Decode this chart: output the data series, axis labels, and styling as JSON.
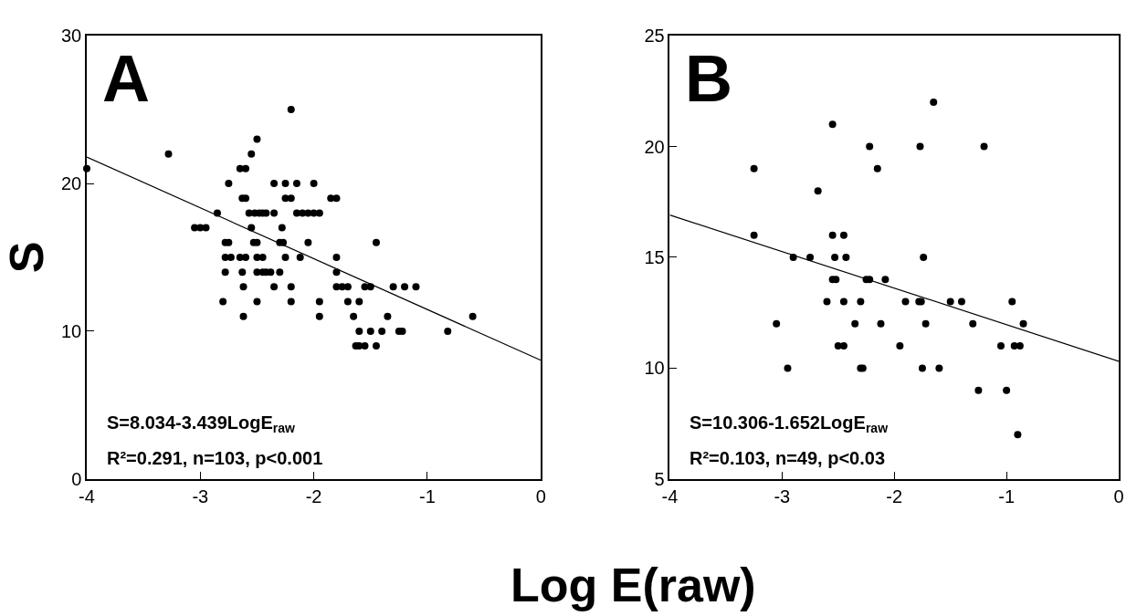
{
  "chart_data": [
    {
      "type": "scatter",
      "ylabel": "S",
      "xlabel": "Log E(raw)",
      "xlim": [
        -4,
        0
      ],
      "xticks": [
        -4,
        -3,
        -2,
        -1,
        0
      ],
      "ylim": [
        0,
        30
      ],
      "yticks": [
        0,
        10,
        20,
        30
      ],
      "annotations": [
        "A",
        "S=8.034-3.439LogE$_{raw}$",
        "R²=0.291, n=103, p<0.001"
      ],
      "series": [
        {
          "marker": "circle",
          "color": "#000000",
          "x": [
            -4.0,
            -3.28,
            -3.05,
            -3.0,
            -2.95,
            -2.85,
            -2.78,
            -2.75,
            -2.78,
            -2.73,
            -2.78,
            -2.8,
            -2.75,
            -2.65,
            -2.6,
            -2.63,
            -2.6,
            -2.65,
            -2.6,
            -2.63,
            -2.62,
            -2.62,
            -2.55,
            -2.5,
            -2.57,
            -2.52,
            -2.48,
            -2.45,
            -2.42,
            -2.53,
            -2.5,
            -2.5,
            -2.45,
            -2.55,
            -2.5,
            -2.45,
            -2.42,
            -2.38,
            -2.5,
            -2.35,
            -2.35,
            -2.35,
            -2.3,
            -2.27,
            -2.28,
            -2.3,
            -2.25,
            -2.2,
            -2.25,
            -2.2,
            -2.2,
            -2.25,
            -2.15,
            -2.2,
            -2.15,
            -2.1,
            -2.05,
            -2.12,
            -2.05,
            -2.0,
            -2.0,
            -1.95,
            -1.95,
            -1.95,
            -1.85,
            -1.8,
            -1.8,
            -1.8,
            -1.8,
            -1.75,
            -1.7,
            -1.7,
            -1.65,
            -1.6,
            -1.63,
            -1.6,
            -1.6,
            -1.55,
            -1.55,
            -1.5,
            -1.5,
            -1.45,
            -1.45,
            -1.4,
            -1.35,
            -1.3,
            -1.25,
            -1.22,
            -1.2,
            -1.1,
            -0.82,
            -0.6
          ],
          "values": [
            21,
            22,
            17,
            17,
            17,
            18,
            16,
            16,
            15,
            15,
            14,
            12,
            20,
            21,
            21,
            19,
            19,
            15,
            15,
            14,
            13,
            11,
            22,
            23,
            18,
            18,
            18,
            18,
            18,
            16,
            16,
            15,
            15,
            17,
            14,
            14,
            14,
            14,
            12,
            20,
            18,
            13,
            16,
            16,
            17,
            14,
            15,
            25,
            19,
            19,
            13,
            20,
            20,
            12,
            18,
            18,
            18,
            15,
            16,
            20,
            18,
            18,
            12,
            11,
            19,
            19,
            15,
            14,
            13,
            13,
            13,
            12,
            11,
            12,
            9,
            9,
            10,
            9,
            13,
            13,
            10,
            16,
            9,
            10,
            11,
            13,
            10,
            10,
            13,
            13,
            10,
            11
          ]
        },
        {
          "type": "line",
          "marker": "none",
          "line_style": "solid",
          "color": "#000000",
          "x": [
            -4,
            0
          ],
          "values": [
            21.79,
            8.03
          ]
        }
      ]
    },
    {
      "type": "scatter",
      "xlim": [
        -4,
        0
      ],
      "xticks": [
        -4,
        -3,
        -2,
        -1,
        0
      ],
      "ylim": [
        5,
        25
      ],
      "yticks": [
        5,
        10,
        15,
        20,
        25
      ],
      "annotations": [
        "B",
        "S=10.306-1.652LogE$_{raw}$",
        "R²=0.103, n=49, p<0.03"
      ],
      "series": [
        {
          "marker": "circle",
          "color": "#000000",
          "x": [
            -3.25,
            -3.25,
            -3.05,
            -2.95,
            -2.9,
            -2.75,
            -2.68,
            -2.6,
            -2.55,
            -2.55,
            -2.53,
            -2.55,
            -2.52,
            -2.5,
            -2.45,
            -2.45,
            -2.43,
            -2.45,
            -2.35,
            -2.3,
            -2.3,
            -2.28,
            -2.25,
            -2.22,
            -2.22,
            -2.15,
            -2.12,
            -2.08,
            -1.95,
            -1.9,
            -1.78,
            -1.76,
            -1.77,
            -1.75,
            -1.74,
            -1.72,
            -1.65,
            -1.6,
            -1.5,
            -1.4,
            -1.3,
            -1.25,
            -1.2,
            -1.05,
            -1.0,
            -0.95,
            -0.93,
            -0.88,
            -0.85,
            -0.9
          ],
          "values": [
            19,
            16,
            12,
            10,
            15,
            15,
            18,
            13,
            21,
            16,
            15,
            14,
            14,
            11,
            16,
            13,
            15,
            11,
            12,
            13,
            10,
            10,
            14,
            14,
            20,
            19,
            12,
            14,
            11,
            13,
            13,
            13,
            20,
            10,
            15,
            12,
            22,
            10,
            13,
            13,
            12,
            9,
            20,
            11,
            9,
            13,
            11,
            11,
            12,
            7
          ]
        },
        {
          "type": "line",
          "marker": "none",
          "line_style": "solid",
          "color": "#000000",
          "x": [
            -4,
            0
          ],
          "values": [
            16.91,
            10.31
          ]
        }
      ]
    }
  ]
}
